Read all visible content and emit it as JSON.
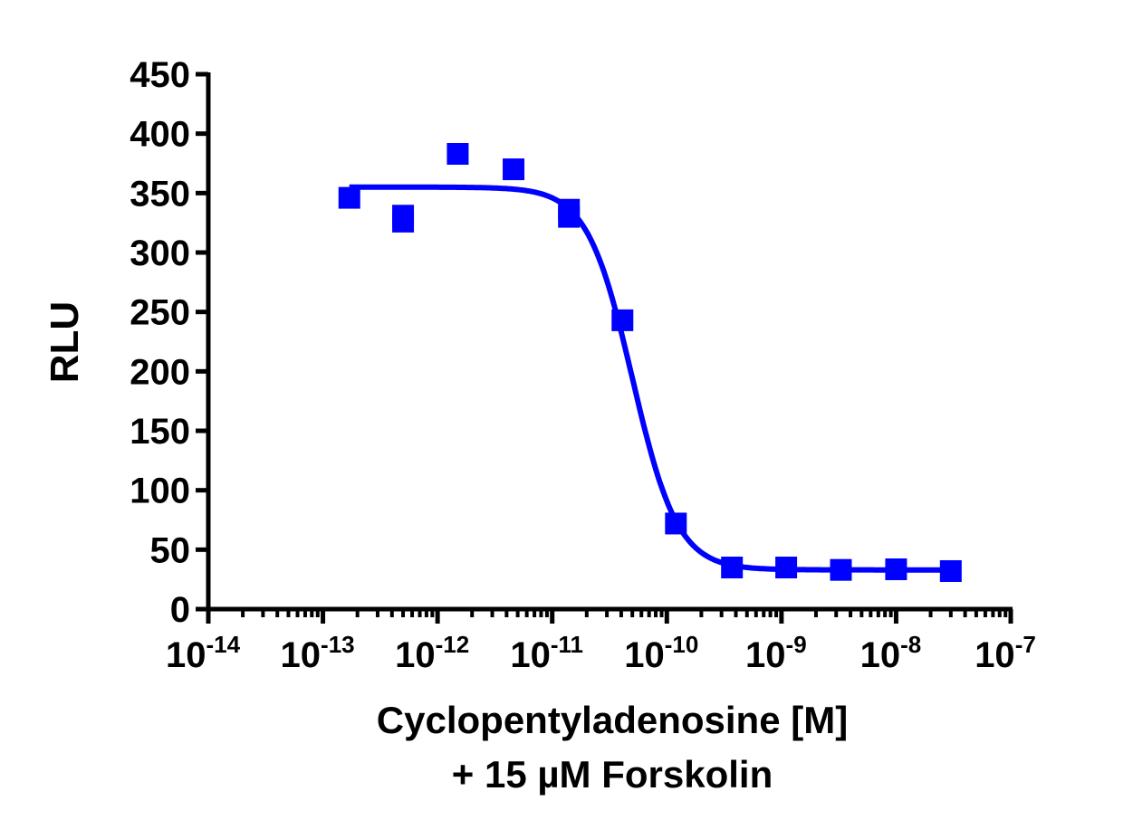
{
  "chart_data": {
    "type": "scatter",
    "title": "",
    "xlabel": "Cyclopentyladenosine [M]",
    "xlabel_line2": "+ 15 µM Forskolin",
    "ylabel": "RLU",
    "x_scale": "log",
    "xlim": [
      1e-14,
      1e-07
    ],
    "ylim": [
      0,
      450
    ],
    "x_tick_exponents": [
      "-14",
      "-13",
      "-12",
      "-11",
      "-10",
      "-9",
      "-8",
      "-7"
    ],
    "x_tick_base": "10",
    "y_ticks": [
      "0",
      "50",
      "100",
      "150",
      "200",
      "250",
      "300",
      "350",
      "400",
      "450"
    ],
    "grid": false,
    "legend": "none",
    "color": "#0000ff",
    "series": [
      {
        "marker": "square",
        "points": [
          {
            "x": 1.7e-13,
            "y": 346
          },
          {
            "x": 5e-13,
            "y": 331
          },
          {
            "x": 5e-13,
            "y": 326
          },
          {
            "x": 1.5e-12,
            "y": 383
          },
          {
            "x": 4.6e-12,
            "y": 370
          },
          {
            "x": 1.4e-11,
            "y": 336
          },
          {
            "x": 1.4e-11,
            "y": 330
          },
          {
            "x": 4.1e-11,
            "y": 243
          },
          {
            "x": 1.2e-10,
            "y": 72
          },
          {
            "x": 3.7e-10,
            "y": 35
          },
          {
            "x": 1.1e-09,
            "y": 35
          },
          {
            "x": 3.3e-09,
            "y": 33
          },
          {
            "x": 1e-08,
            "y": 33.5
          },
          {
            "x": 3e-08,
            "y": 32
          }
        ]
      }
    ],
    "fit_curve": {
      "model": "four-parameter logistic",
      "top": 355,
      "bottom": 33,
      "log_ic50": -10.3,
      "hill_slope": -2.2,
      "x_range": [
        1.7e-13,
        3e-08
      ]
    }
  }
}
